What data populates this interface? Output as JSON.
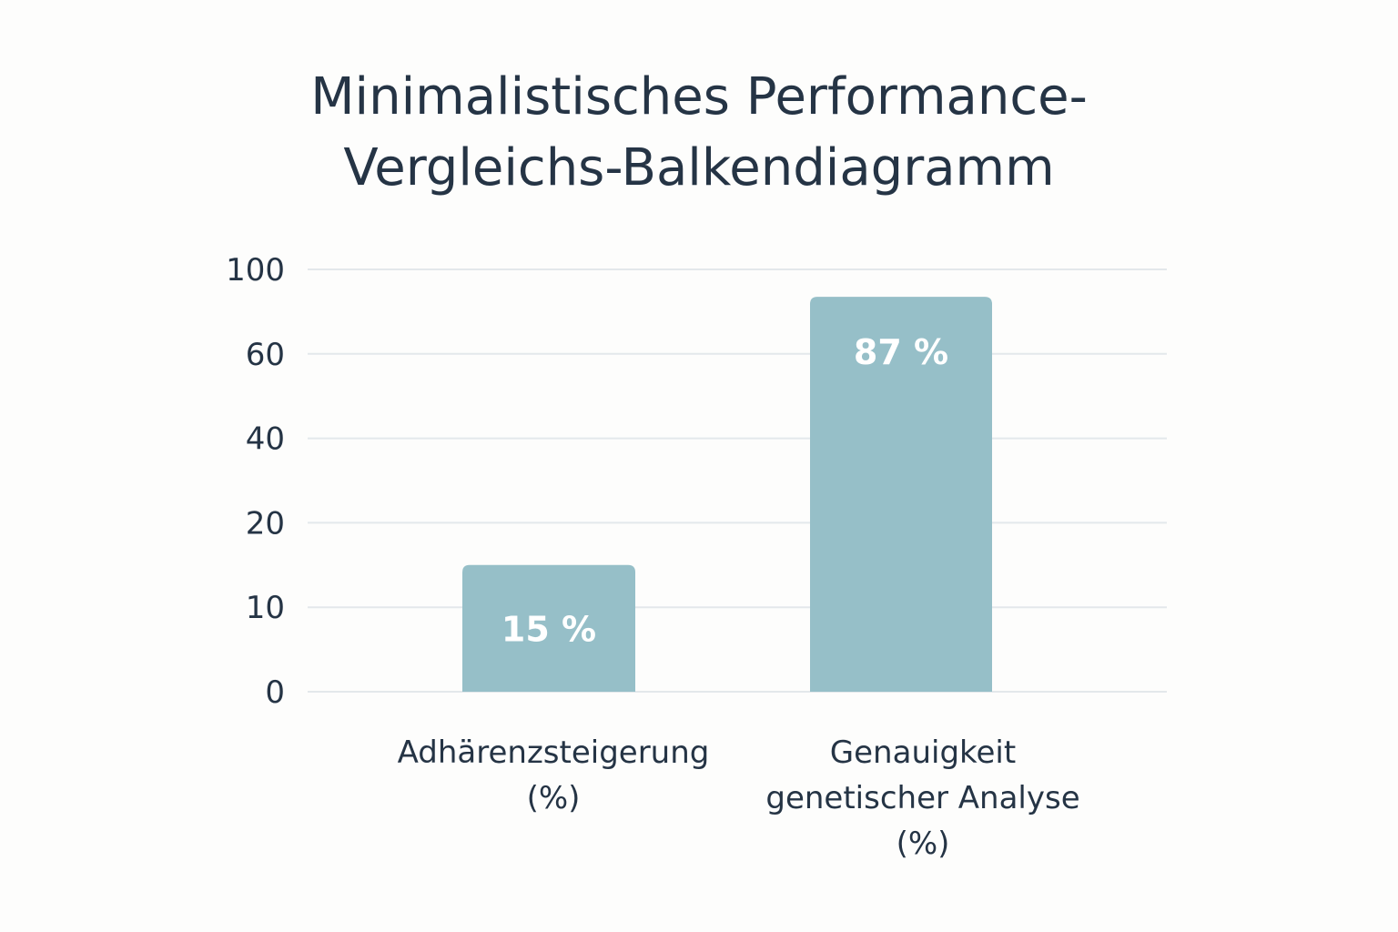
{
  "chart_data": {
    "type": "bar",
    "title_lines": [
      "Minimalistisches Performance-",
      "Vergleichs-Balkendiagramm"
    ],
    "categories": [
      [
        "Adhärenzsteigerung",
        "(%)"
      ],
      [
        "Genauigkeit",
        "genetischer Analyse",
        "(%)"
      ]
    ],
    "values": [
      15,
      87
    ],
    "value_labels": [
      "15 %",
      "87 %"
    ],
    "y_ticks": [
      "0",
      "10",
      "20",
      "40",
      "60",
      "100"
    ],
    "ylim": [
      0,
      100
    ],
    "grid": true,
    "xlabel": "",
    "ylabel": "",
    "bar_color": "#96bfc8",
    "label_color": "#ffffff",
    "grid_color": "#e3e8eb"
  }
}
